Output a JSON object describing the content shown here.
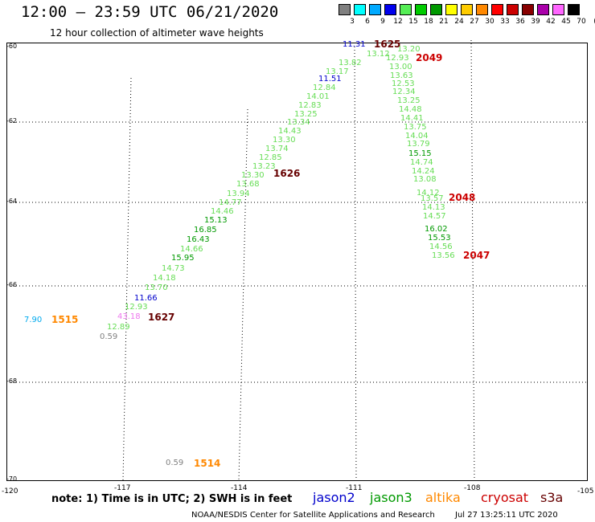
{
  "header": {
    "title": "12:00 — 23:59 UTC 06/21/2020",
    "subtitle": "12 hour collection of altimeter wave heights"
  },
  "legend": {
    "unit": "(ft)",
    "levels": [
      "3",
      "6",
      "9",
      "12",
      "15",
      "18",
      "21",
      "24",
      "27",
      "30",
      "33",
      "36",
      "39",
      "42",
      "45",
      "70"
    ],
    "colors": [
      "#808080",
      "#00ffff",
      "#00aaff",
      "#0000ee",
      "#55ee55",
      "#00cc00",
      "#009900",
      "#ffff00",
      "#ffcc00",
      "#ff8800",
      "#ff0000",
      "#cc0000",
      "#880000",
      "#aa00aa",
      "#ff66ff",
      "#000000"
    ]
  },
  "map": {
    "y_labels": [
      "-60",
      "-62",
      "-64",
      "-66",
      "-68",
      "-70"
    ],
    "x_labels": [
      "-120",
      "-117",
      "-114",
      "-111",
      "-108",
      "-105"
    ]
  },
  "colors": {
    "jason2": "#0000cc",
    "jason3": "#009900",
    "jason3_light": "#66dd55",
    "altika": "#ff8800",
    "cryosat": "#cc0000",
    "s3a": "#660000",
    "gray": "#808080",
    "cyan": "#00aaee",
    "pink": "#ee77ee"
  },
  "points": [
    {
      "v": "11.31",
      "c": "jason2"
    },
    {
      "v": "13.20",
      "c": "jason3_light"
    },
    {
      "v": "13.12",
      "c": "jason3_light"
    },
    {
      "v": "12.93",
      "c": "jason3_light"
    },
    {
      "v": "13.82",
      "c": "jason3_light"
    },
    {
      "v": "13.00",
      "c": "jason3_light"
    },
    {
      "v": "13.17",
      "c": "jason3_light"
    },
    {
      "v": "13.63",
      "c": "jason3_light"
    },
    {
      "v": "11.51",
      "c": "jason2"
    },
    {
      "v": "12.53",
      "c": "jason3_light"
    },
    {
      "v": "12.84",
      "c": "jason3_light"
    },
    {
      "v": "12.34",
      "c": "jason3_light"
    },
    {
      "v": "14.01",
      "c": "jason3_light"
    },
    {
      "v": "13.25",
      "c": "jason3_light"
    },
    {
      "v": "12.83",
      "c": "jason3_light"
    },
    {
      "v": "14.48",
      "c": "jason3_light"
    },
    {
      "v": "13.25",
      "c": "jason3_light"
    },
    {
      "v": "14.41",
      "c": "jason3_light"
    },
    {
      "v": "13.34",
      "c": "jason3_light"
    },
    {
      "v": "13.75",
      "c": "jason3_light"
    },
    {
      "v": "14.43",
      "c": "jason3_light"
    },
    {
      "v": "14.04",
      "c": "jason3_light"
    },
    {
      "v": "13.30",
      "c": "jason3_light"
    },
    {
      "v": "13.79",
      "c": "jason3_light"
    },
    {
      "v": "13.74",
      "c": "jason3_light"
    },
    {
      "v": "15.15",
      "c": "jason3"
    },
    {
      "v": "12.85",
      "c": "jason3_light"
    },
    {
      "v": "14.74",
      "c": "jason3_light"
    },
    {
      "v": "13.23",
      "c": "jason3_light"
    },
    {
      "v": "14.24",
      "c": "jason3_light"
    },
    {
      "v": "13.30",
      "c": "jason3_light"
    },
    {
      "v": "13.08",
      "c": "jason3_light"
    },
    {
      "v": "13.68",
      "c": "jason3_light"
    },
    {
      "v": "14.12",
      "c": "jason3_light"
    },
    {
      "v": "13.94",
      "c": "jason3_light"
    },
    {
      "v": "13.57",
      "c": "jason3_light"
    },
    {
      "v": "14.77",
      "c": "jason3_light"
    },
    {
      "v": "14.13",
      "c": "jason3_light"
    },
    {
      "v": "14.46",
      "c": "jason3_light"
    },
    {
      "v": "14.57",
      "c": "jason3_light"
    },
    {
      "v": "15.13",
      "c": "jason3"
    },
    {
      "v": "16.02",
      "c": "jason3"
    },
    {
      "v": "16.85",
      "c": "jason3"
    },
    {
      "v": "15.53",
      "c": "jason3"
    },
    {
      "v": "16.43",
      "c": "jason3"
    },
    {
      "v": "14.56",
      "c": "jason3_light"
    },
    {
      "v": "14.66",
      "c": "jason3_light"
    },
    {
      "v": "13.56",
      "c": "jason3_light"
    },
    {
      "v": "15.95",
      "c": "jason3"
    },
    {
      "v": "14.73",
      "c": "jason3_light"
    },
    {
      "v": "14.18",
      "c": "jason3_light"
    },
    {
      "v": "13.70",
      "c": "jason3_light"
    },
    {
      "v": "11.66",
      "c": "jason2"
    },
    {
      "v": "12.93",
      "c": "jason3_light"
    },
    {
      "v": "7.90",
      "c": "cyan"
    },
    {
      "v": "43.18",
      "c": "pink"
    },
    {
      "v": "12.89",
      "c": "jason3_light"
    },
    {
      "v": "0.59",
      "c": "gray"
    },
    {
      "v": "0.59",
      "c": "gray"
    }
  ],
  "times": [
    {
      "t": "1625",
      "c": "s3a"
    },
    {
      "t": "2049",
      "c": "cryosat"
    },
    {
      "t": "1626",
      "c": "s3a"
    },
    {
      "t": "2048",
      "c": "cryosat"
    },
    {
      "t": "2047",
      "c": "cryosat"
    },
    {
      "t": "1515",
      "c": "altika"
    },
    {
      "t": "1627",
      "c": "s3a"
    },
    {
      "t": "1514",
      "c": "altika"
    }
  ],
  "footer": {
    "note": "note: 1) Time is in UTC; 2) SWH is in feet",
    "satellites": [
      {
        "name": "jason2",
        "c": "jason2"
      },
      {
        "name": "jason3",
        "c": "jason3"
      },
      {
        "name": "altika",
        "c": "altika"
      },
      {
        "name": "cryosat",
        "c": "cryosat"
      },
      {
        "name": "s3a",
        "c": "s3a"
      }
    ],
    "credit": "NOAA/NESDIS Center for Satellite Applications and Research",
    "timestamp": "Jul 27 13:25:11 UTC 2020"
  }
}
